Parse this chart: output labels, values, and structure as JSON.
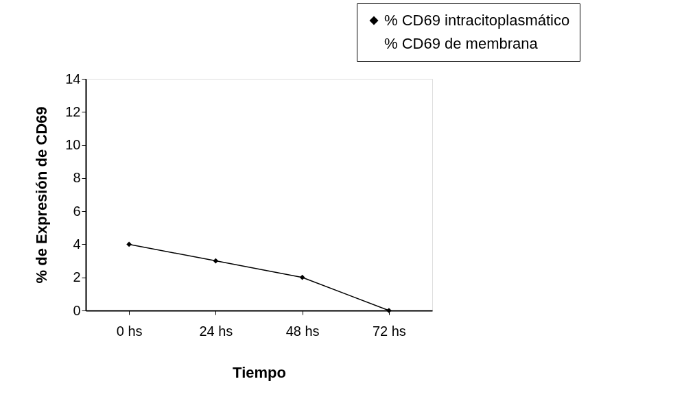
{
  "chart_data": {
    "type": "line",
    "xlabel": "Tiempo",
    "ylabel": "% de Expresión de CD69",
    "categories": [
      "0 hs",
      "24 hs",
      "48 hs",
      "72 hs"
    ],
    "series": [
      {
        "name": "% CD69 intracitoplasmático",
        "color": "#000000",
        "values": [
          4,
          3,
          2,
          0
        ]
      },
      {
        "name": "% CD69 de membrana",
        "values": [
          null,
          null,
          null,
          null
        ]
      }
    ],
    "ylim": [
      0,
      14
    ],
    "yticks": [
      0,
      2,
      4,
      6,
      8,
      10,
      12,
      14
    ],
    "grid": false,
    "legend": "top right",
    "marker": "diamond",
    "line_style": "solid"
  }
}
